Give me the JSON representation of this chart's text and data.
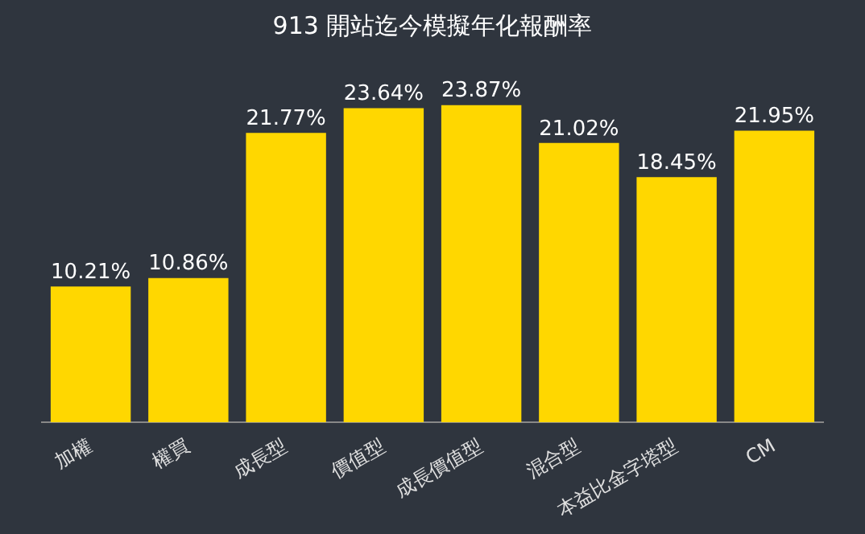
{
  "chart_data": {
    "type": "bar",
    "title": "913 開站迄今模擬年化報酬率",
    "categories": [
      "加權",
      "權買",
      "成長型",
      "價值型",
      "成長價值型",
      "混合型",
      "本益比金字塔型",
      "CM"
    ],
    "values": [
      10.21,
      10.86,
      21.77,
      23.64,
      23.87,
      21.02,
      18.45,
      21.95
    ],
    "value_labels": [
      "10.21%",
      "10.86%",
      "21.77%",
      "23.64%",
      "23.87%",
      "21.02%",
      "18.45%",
      "21.95%"
    ],
    "color": "#ffd700",
    "grid": false,
    "legend": false
  }
}
